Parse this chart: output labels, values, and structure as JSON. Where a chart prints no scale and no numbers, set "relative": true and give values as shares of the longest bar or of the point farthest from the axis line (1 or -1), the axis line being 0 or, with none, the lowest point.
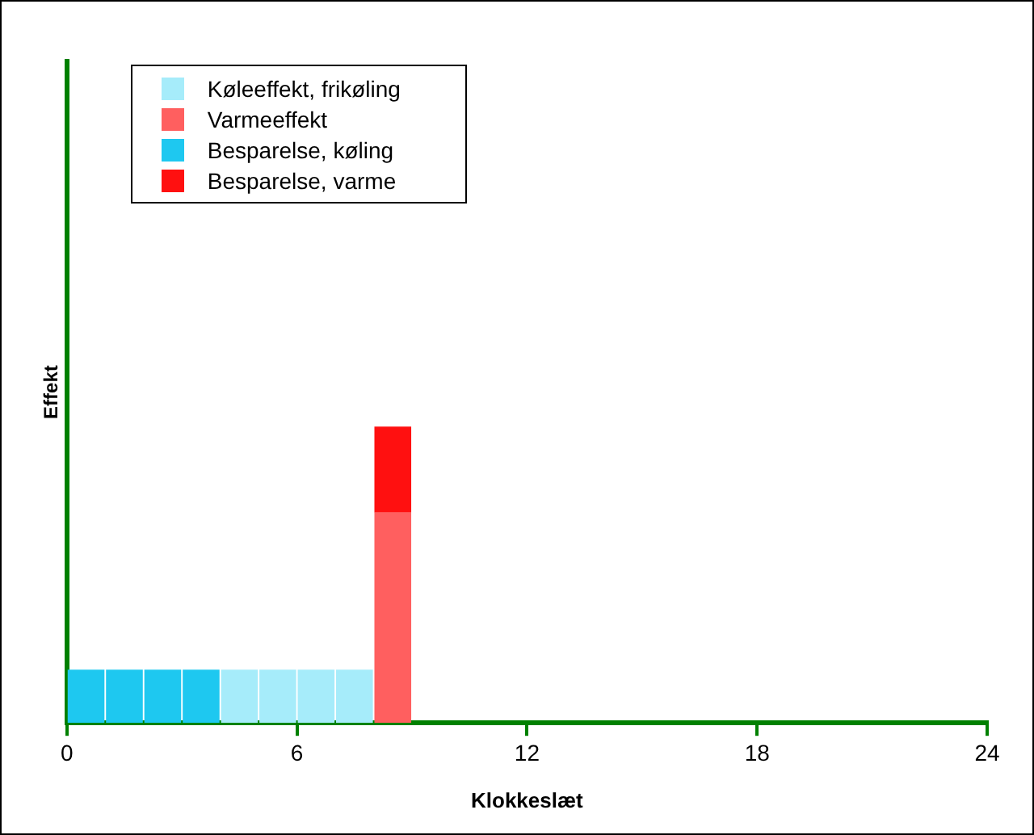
{
  "chart_data": {
    "type": "bar",
    "stacked": true,
    "relative": true,
    "xlabel": "Klokkeslæt",
    "ylabel": "Effekt",
    "x": [
      0.5,
      1.5,
      2.5,
      3.5,
      4.5,
      5.5,
      6.5,
      7.5,
      8.5
    ],
    "xlim": [
      0,
      24
    ],
    "xticks": [
      0,
      6,
      12,
      18,
      24
    ],
    "grid": false,
    "legend": "top left",
    "series": [
      {
        "name": "Køleeffekt, frikøling",
        "color": "#a6ecfa",
        "values": [
          null,
          null,
          null,
          null,
          0.18,
          0.18,
          0.18,
          0.18,
          null
        ]
      },
      {
        "name": "Varmeeffekt",
        "color": "#ff5f5f",
        "values": [
          null,
          null,
          null,
          null,
          null,
          null,
          null,
          null,
          0.71
        ]
      },
      {
        "name": "Besparelse, køling",
        "color": "#1ec8f0",
        "values": [
          0.18,
          0.18,
          0.18,
          0.18,
          null,
          null,
          null,
          null,
          null
        ]
      },
      {
        "name": "Besparelse, varme",
        "color": "#ff1010",
        "values": [
          null,
          null,
          null,
          null,
          null,
          null,
          null,
          null,
          0.29
        ]
      }
    ]
  }
}
